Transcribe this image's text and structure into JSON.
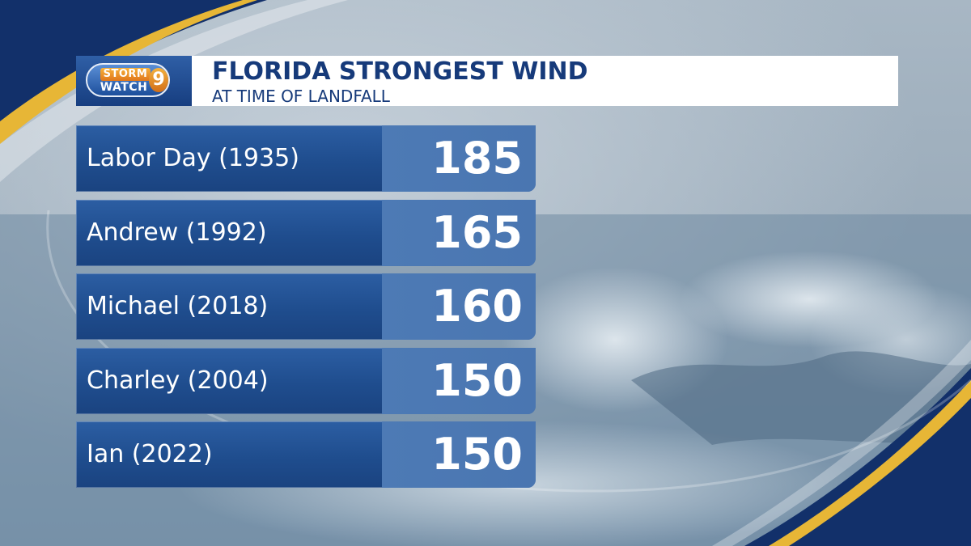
{
  "header": {
    "logo": {
      "storm": "STORM",
      "watch": "WATCH",
      "number": "9"
    },
    "title": "FLORIDA STRONGEST WIND",
    "subtitle": "AT TIME OF LANDFALL"
  },
  "rows": [
    {
      "name": "Labor Day (1935)",
      "value": "185"
    },
    {
      "name": "Andrew (1992)",
      "value": "165"
    },
    {
      "name": "Michael (2018)",
      "value": "160"
    },
    {
      "name": "Charley (2004)",
      "value": "150"
    },
    {
      "name": "Ian (2022)",
      "value": "150"
    }
  ],
  "colors": {
    "accent_gold": "#e7b636",
    "navy": "#163a7a",
    "row_blue": "#1f4d8e",
    "value_blue": "#4d7ab5"
  }
}
